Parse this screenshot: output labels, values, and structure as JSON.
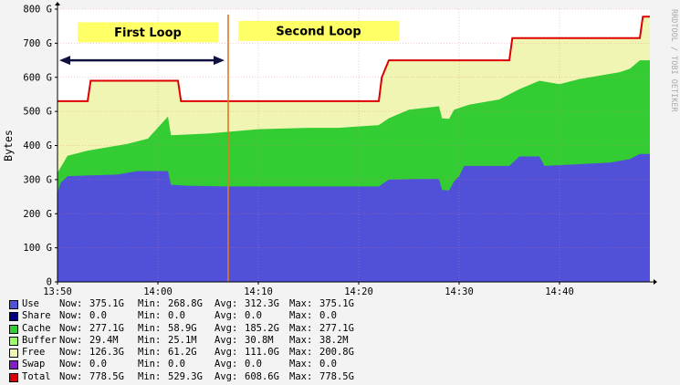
{
  "chart_data": {
    "type": "area",
    "ylabel": "Bytes",
    "watermark": "RRDTOOL / TOBI OETIKER",
    "ylim": [
      0,
      800
    ],
    "yticks": [
      0,
      100,
      200,
      300,
      400,
      500,
      600,
      700,
      800
    ],
    "ytick_labels": [
      "0",
      "100 G",
      "200 G",
      "300 G",
      "400 G",
      "500 G",
      "600 G",
      "700 G",
      "800 G"
    ],
    "xlim": [
      "13:50",
      "14:49"
    ],
    "xticks": [
      "13:50",
      "14:00",
      "14:10",
      "14:20",
      "14:30",
      "14:40"
    ],
    "marker_time": "14:07",
    "annotations": [
      {
        "text": "First Loop",
        "time_from": "13:52",
        "time_to": "14:06",
        "y": 732
      },
      {
        "text": "Second Loop",
        "time_from": "14:08",
        "time_to": "14:24",
        "y": 736
      }
    ],
    "arrow": {
      "time_from": "13:50",
      "time_to": "14:07",
      "y": 650
    },
    "series": [
      {
        "name": "Use",
        "color": "#5050d8",
        "points": [
          [
            "13:50",
            260
          ],
          [
            "13:50.3",
            290
          ],
          [
            "13:51",
            310
          ],
          [
            "13:53",
            312
          ],
          [
            "13:56",
            315
          ],
          [
            "13:58",
            325
          ],
          [
            "14:01",
            325
          ],
          [
            "14:01.3",
            285
          ],
          [
            "14:03",
            282
          ],
          [
            "14:07",
            280
          ],
          [
            "14:12",
            280
          ],
          [
            "14:15",
            280
          ],
          [
            "14:18",
            280
          ],
          [
            "14:21",
            280
          ],
          [
            "14:22",
            280
          ],
          [
            "14:22.5",
            290
          ],
          [
            "14:23",
            300
          ],
          [
            "14:26",
            302
          ],
          [
            "14:28",
            302
          ],
          [
            "14:28.3",
            270
          ],
          [
            "14:29",
            268
          ],
          [
            "14:29.5",
            295
          ],
          [
            "14:30",
            310
          ],
          [
            "14:30.5",
            340
          ],
          [
            "14:35",
            340
          ],
          [
            "14:36",
            368
          ],
          [
            "14:38",
            368
          ],
          [
            "14:38.5",
            340
          ],
          [
            "14:45",
            350
          ],
          [
            "14:47",
            360
          ],
          [
            "14:48",
            375
          ],
          [
            "14:49",
            375
          ]
        ]
      },
      {
        "name": "Cache",
        "color": "#33cc33",
        "points": [
          [
            "13:50",
            320
          ],
          [
            "13:51",
            370
          ],
          [
            "13:53",
            385
          ],
          [
            "13:55",
            395
          ],
          [
            "13:57",
            405
          ],
          [
            "13:59",
            420
          ],
          [
            "14:01",
            485
          ],
          [
            "14:01.3",
            430
          ],
          [
            "14:05",
            435
          ],
          [
            "14:07",
            440
          ],
          [
            "14:10",
            448
          ],
          [
            "14:15",
            452
          ],
          [
            "14:18",
            452
          ],
          [
            "14:22",
            460
          ],
          [
            "14:23",
            480
          ],
          [
            "14:25",
            505
          ],
          [
            "14:28",
            515
          ],
          [
            "14:28.3",
            480
          ],
          [
            "14:29",
            478
          ],
          [
            "14:29.5",
            505
          ],
          [
            "14:31",
            520
          ],
          [
            "14:34",
            535
          ],
          [
            "14:36",
            565
          ],
          [
            "14:38",
            590
          ],
          [
            "14:40",
            580
          ],
          [
            "14:42",
            595
          ],
          [
            "14:44",
            605
          ],
          [
            "14:46",
            615
          ],
          [
            "14:47",
            625
          ],
          [
            "14:48",
            650
          ],
          [
            "14:49",
            650
          ]
        ]
      },
      {
        "name": "Free",
        "color": "#f0f5b4",
        "points": [
          [
            "13:50",
            530
          ],
          [
            "13:53",
            530
          ],
          [
            "13:53.3",
            590
          ],
          [
            "14:02",
            590
          ],
          [
            "14:02.3",
            530
          ],
          [
            "14:22",
            530
          ],
          [
            "14:22.3",
            600
          ],
          [
            "14:23",
            650
          ],
          [
            "14:35",
            650
          ],
          [
            "14:35.3",
            715
          ],
          [
            "14:48",
            715
          ],
          [
            "14:48.3",
            778
          ],
          [
            "14:49",
            778
          ]
        ]
      },
      {
        "name": "Total",
        "color": "#dd0000",
        "points": [
          [
            "13:50",
            530
          ],
          [
            "13:53",
            530
          ],
          [
            "13:53.3",
            590
          ],
          [
            "14:02",
            590
          ],
          [
            "14:02.3",
            530
          ],
          [
            "14:22",
            530
          ],
          [
            "14:22.3",
            600
          ],
          [
            "14:23",
            650
          ],
          [
            "14:35",
            650
          ],
          [
            "14:35.3",
            715
          ],
          [
            "14:48",
            715
          ],
          [
            "14:48.3",
            778
          ],
          [
            "14:49",
            778
          ]
        ]
      }
    ],
    "legend": [
      {
        "name": "Use",
        "color": "#5050d8",
        "now": "375.1G",
        "min": "268.8G",
        "avg": "312.3G",
        "max": "375.1G"
      },
      {
        "name": "Share",
        "color": "#000080",
        "now": "0.0",
        "min": "0.0",
        "avg": "0.0",
        "max": "0.0"
      },
      {
        "name": "Cache",
        "color": "#33cc33",
        "now": "277.1G",
        "min": "58.9G",
        "avg": "185.2G",
        "max": "277.1G"
      },
      {
        "name": "Buffer",
        "color": "#99ff66",
        "now": "29.4M",
        "min": "25.1M",
        "avg": "30.8M",
        "max": "38.2M"
      },
      {
        "name": "Free",
        "color": "#f0f5b4",
        "now": "126.3G",
        "min": "61.2G",
        "avg": "111.0G",
        "max": "200.8G"
      },
      {
        "name": "Swap",
        "color": "#8020c0",
        "now": "0.0",
        "min": "0.0",
        "avg": "0.0",
        "max": "0.0"
      },
      {
        "name": "Total",
        "color": "#dd0000",
        "now": "778.5G",
        "min": "529.3G",
        "avg": "608.6G",
        "max": "778.5G"
      }
    ],
    "legend_labels": {
      "now": "Now:",
      "min": "Min:",
      "avg": "Avg:",
      "max": "Max:"
    }
  }
}
